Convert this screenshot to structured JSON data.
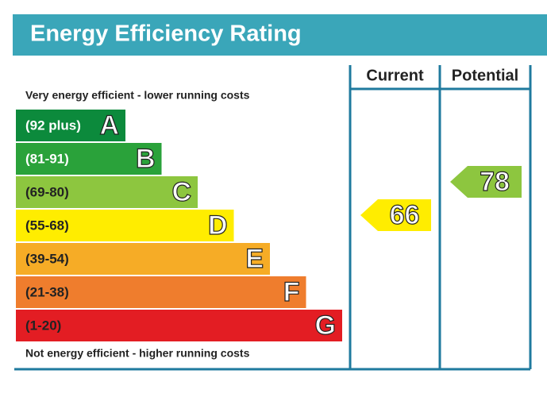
{
  "chart_data": {
    "type": "epc",
    "title": "Energy Efficiency Rating",
    "top_note": "Very energy efficient - lower running costs",
    "bottom_note": "Not energy efficient - higher running costs",
    "columns": [
      "Current",
      "Potential"
    ],
    "bands": [
      {
        "range": "(92 plus)",
        "letter": "A",
        "color": "#0c8a3c",
        "text_color": "#ffffff"
      },
      {
        "range": "(81-91)",
        "letter": "B",
        "color": "#2aa23a",
        "text_color": "#ffffff"
      },
      {
        "range": "(69-80)",
        "letter": "C",
        "color": "#8dc63f",
        "text_color": "#222222"
      },
      {
        "range": "(55-68)",
        "letter": "D",
        "color": "#ffed00",
        "text_color": "#222222"
      },
      {
        "range": "(39-54)",
        "letter": "E",
        "color": "#f6ac26",
        "text_color": "#222222"
      },
      {
        "range": "(21-38)",
        "letter": "F",
        "color": "#ef7d2d",
        "text_color": "#222222"
      },
      {
        "range": "(1-20)",
        "letter": "G",
        "color": "#e31d23",
        "text_color": "#222222"
      }
    ],
    "values": [
      66,
      78
    ]
  }
}
